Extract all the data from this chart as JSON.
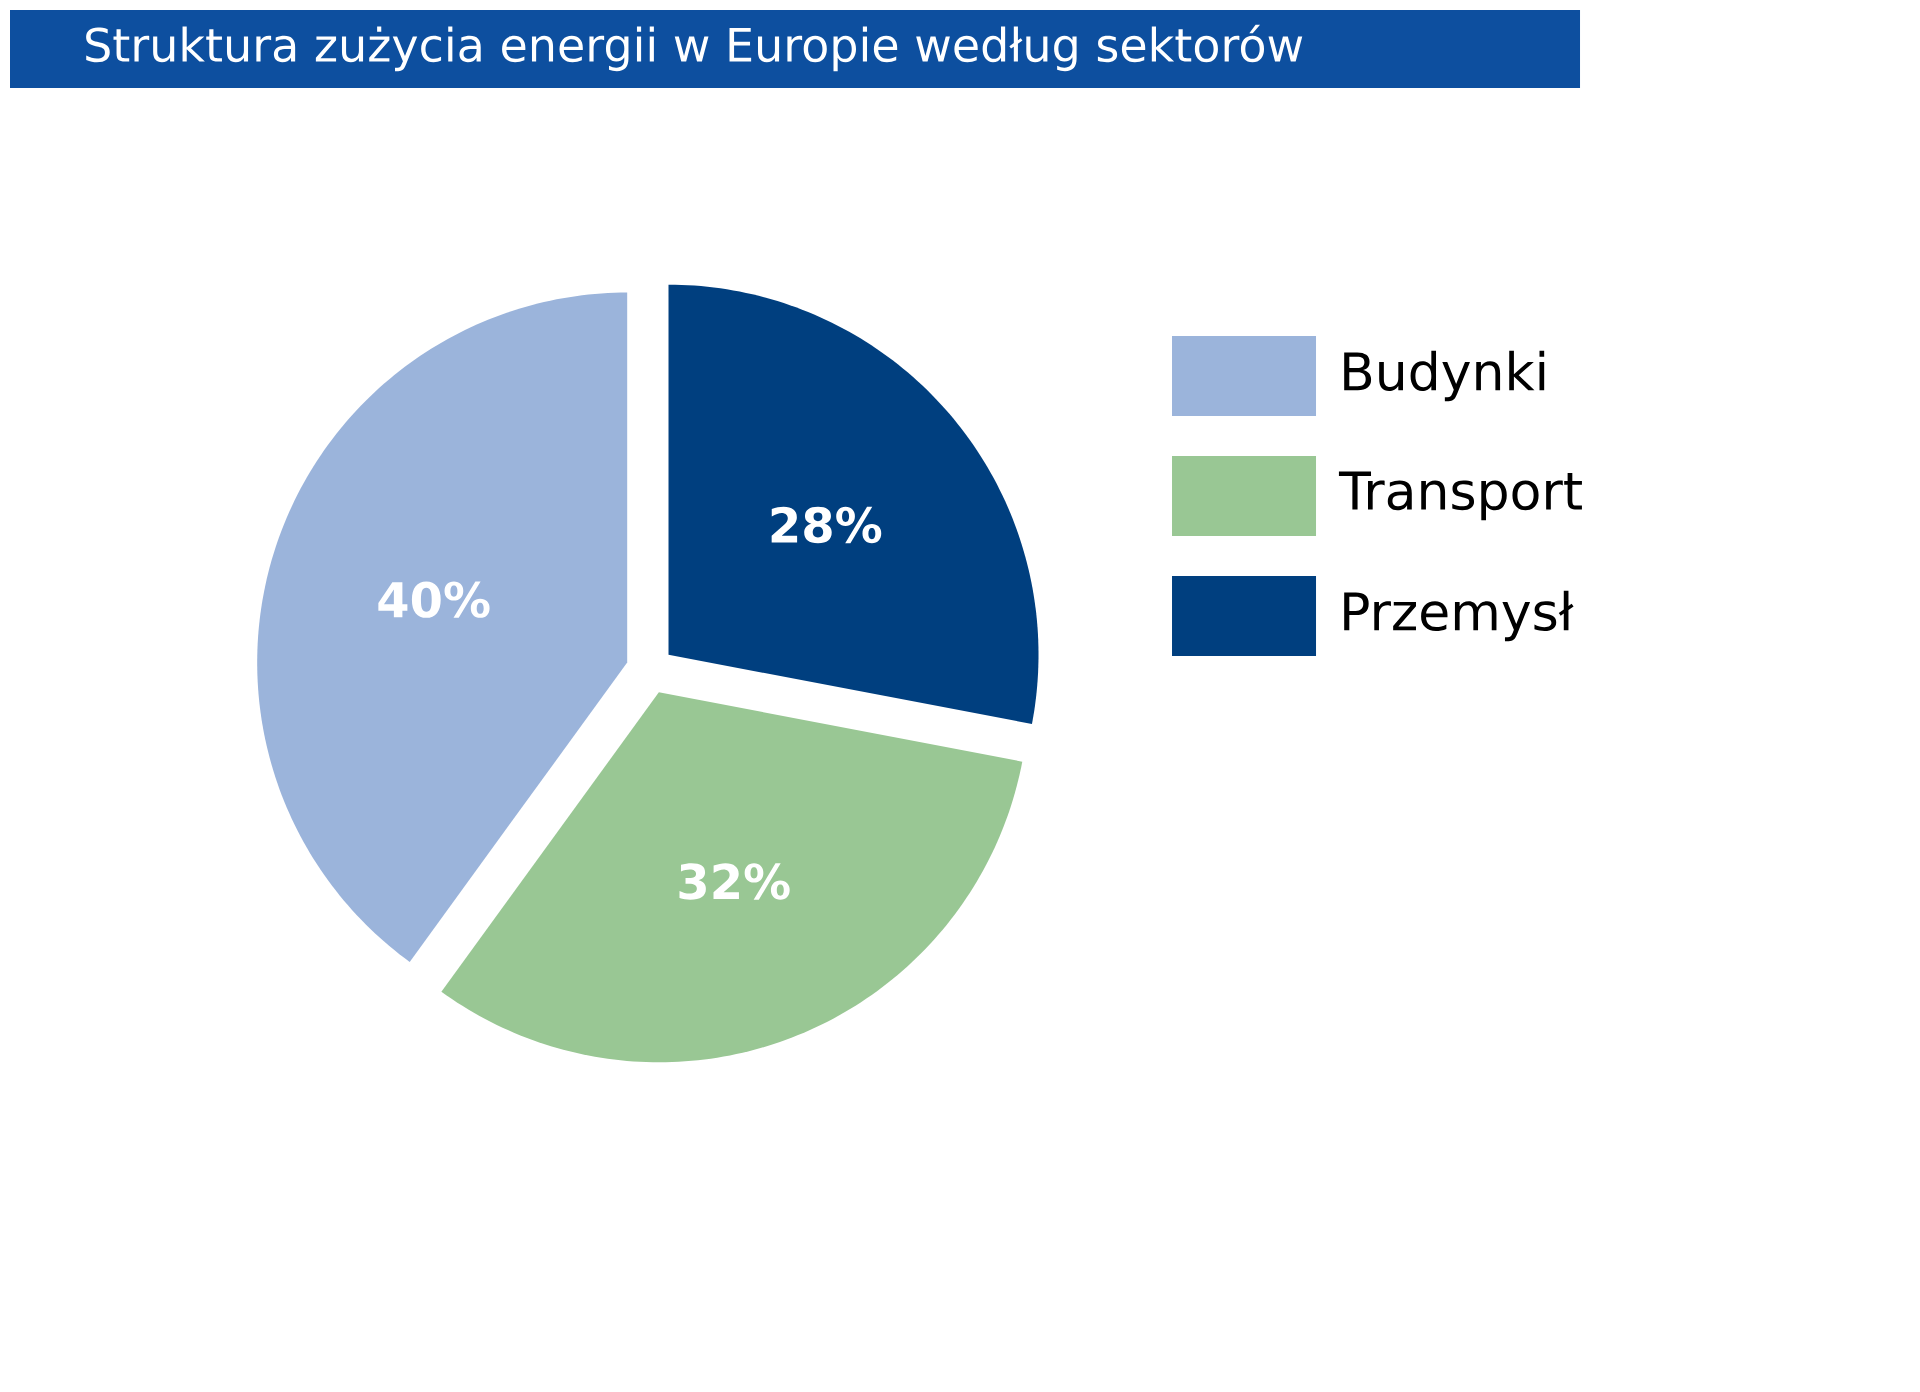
{
  "chart_data": {
    "type": "pie",
    "title": "Struktura zużycia energii w Europie według sektorów",
    "categories": [
      "Budynki",
      "Transport",
      "Przemysł"
    ],
    "values": [
      40,
      32,
      28
    ],
    "colors": [
      "#9bb4db",
      "#99c794",
      "#003f7f"
    ],
    "value_labels": [
      "40%",
      "32%",
      "28%"
    ],
    "legend": "right"
  }
}
